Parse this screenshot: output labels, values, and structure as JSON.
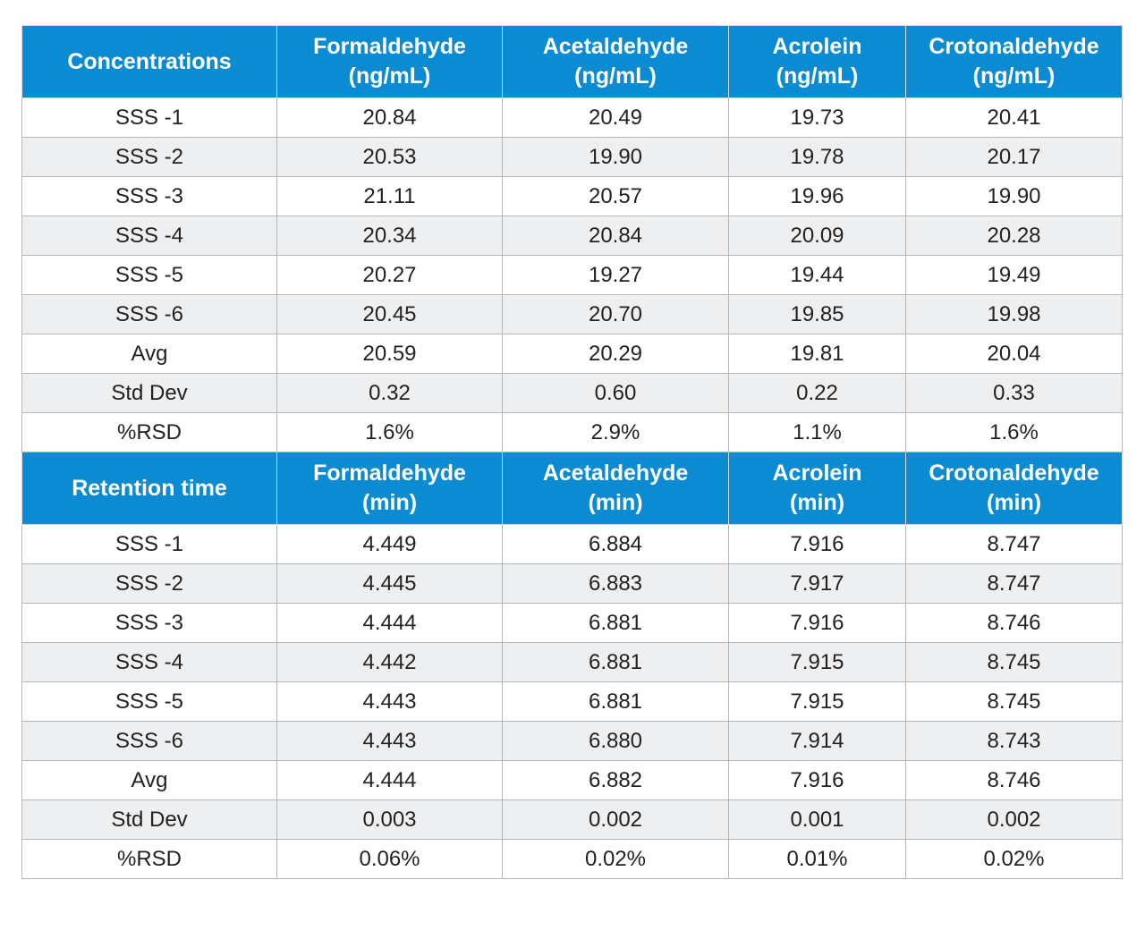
{
  "sections": [
    {
      "header": {
        "title": "Concentrations",
        "columns": [
          {
            "name": "Formaldehyde",
            "unit": "(ng/mL)"
          },
          {
            "name": "Acetaldehyde",
            "unit": "(ng/mL)"
          },
          {
            "name": "Acrolein",
            "unit": "(ng/mL)"
          },
          {
            "name": "Crotonaldehyde",
            "unit": "(ng/mL)"
          }
        ]
      },
      "rows": [
        {
          "label": "SSS -1",
          "values": [
            "20.84",
            "20.49",
            "19.73",
            "20.41"
          ]
        },
        {
          "label": "SSS -2",
          "values": [
            "20.53",
            "19.90",
            "19.78",
            "20.17"
          ]
        },
        {
          "label": "SSS -3",
          "values": [
            "21.11",
            "20.57",
            "19.96",
            "19.90"
          ]
        },
        {
          "label": "SSS -4",
          "values": [
            "20.34",
            "20.84",
            "20.09",
            "20.28"
          ]
        },
        {
          "label": "SSS -5",
          "values": [
            "20.27",
            "19.27",
            "19.44",
            "19.49"
          ]
        },
        {
          "label": "SSS -6",
          "values": [
            "20.45",
            "20.70",
            "19.85",
            "19.98"
          ]
        },
        {
          "label": "Avg",
          "values": [
            "20.59",
            "20.29",
            "19.81",
            "20.04"
          ]
        },
        {
          "label": "Std Dev",
          "values": [
            "0.32",
            "0.60",
            "0.22",
            "0.33"
          ]
        },
        {
          "label": "%RSD",
          "values": [
            "1.6%",
            "2.9%",
            "1.1%",
            "1.6%"
          ]
        }
      ]
    },
    {
      "header": {
        "title": "Retention time",
        "columns": [
          {
            "name": "Formaldehyde",
            "unit": "(min)"
          },
          {
            "name": "Acetaldehyde",
            "unit": "(min)"
          },
          {
            "name": "Acrolein",
            "unit": "(min)"
          },
          {
            "name": "Crotonaldehyde",
            "unit": "(min)"
          }
        ]
      },
      "rows": [
        {
          "label": "SSS -1",
          "values": [
            "4.449",
            "6.884",
            "7.916",
            "8.747"
          ]
        },
        {
          "label": "SSS -2",
          "values": [
            "4.445",
            "6.883",
            "7.917",
            "8.747"
          ]
        },
        {
          "label": "SSS -3",
          "values": [
            "4.444",
            "6.881",
            "7.916",
            "8.746"
          ]
        },
        {
          "label": "SSS -4",
          "values": [
            "4.442",
            "6.881",
            "7.915",
            "8.745"
          ]
        },
        {
          "label": "SSS -5",
          "values": [
            "4.443",
            "6.881",
            "7.915",
            "8.745"
          ]
        },
        {
          "label": "SSS -6",
          "values": [
            "4.443",
            "6.880",
            "7.914",
            "8.743"
          ]
        },
        {
          "label": "Avg",
          "values": [
            "4.444",
            "6.882",
            "7.916",
            "8.746"
          ]
        },
        {
          "label": "Std Dev",
          "values": [
            "0.003",
            "0.002",
            "0.001",
            "0.002"
          ]
        },
        {
          "label": "%RSD",
          "values": [
            "0.06%",
            "0.02%",
            "0.01%",
            "0.02%"
          ]
        }
      ]
    }
  ],
  "colors": {
    "header_bg": "#0a8bd2",
    "header_text": "#ffffff",
    "row_alt_bg": "#eeeff1",
    "border": "#b7b7b7"
  }
}
